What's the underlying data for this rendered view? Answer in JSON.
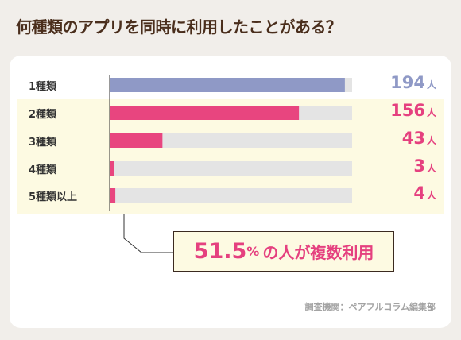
{
  "title": "何種類のアプリを同時に利用したことがある？",
  "chart_data": {
    "type": "bar",
    "orientation": "horizontal",
    "categories": [
      "1種類",
      "2種類",
      "3種類",
      "4種類",
      "5種類以上"
    ],
    "values": [
      194,
      156,
      43,
      3,
      4
    ],
    "unit": "人",
    "xlim": [
      0,
      200
    ],
    "colors": [
      "#8f99c6",
      "#e8457f",
      "#e8457f",
      "#e8457f",
      "#e8457f"
    ],
    "track_color": "#e4e4e4",
    "value_label_colors": [
      "#8f99c6",
      "#e5407f",
      "#e5407f",
      "#e5407f",
      "#e5407f"
    ],
    "highlighted_categories": [
      "2種類",
      "3種類",
      "4種類",
      "5種類以上"
    ],
    "grid": false
  },
  "summary": {
    "number": "51.5",
    "percent_sign": "%",
    "text": "の人が複数利用"
  },
  "source": "調査機関：ペアフルコラム編集部",
  "colors": {
    "page_background": "#f1eeea",
    "card_background": "#ffffff",
    "highlight_background": "#fdfae2",
    "accent_pink": "#e5407f",
    "title_brown": "#4a2e1c"
  }
}
